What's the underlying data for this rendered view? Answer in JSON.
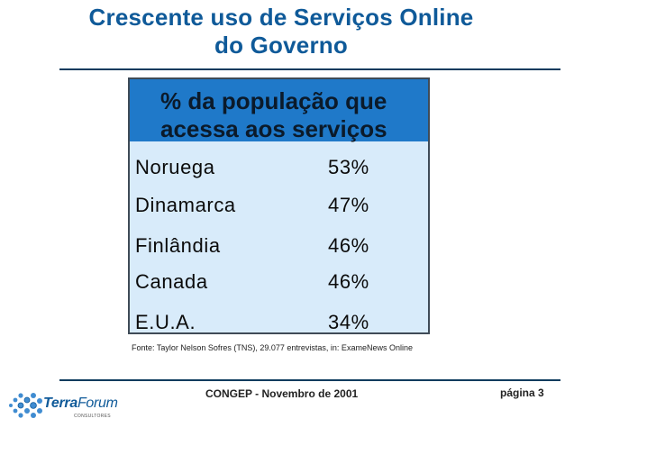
{
  "slide": {
    "title_line1": "Crescente uso de Serviços Online",
    "title_line2": "do Governo"
  },
  "table": {
    "header_line1": "% da população que",
    "header_line2": "acessa aos serviços",
    "rows": [
      {
        "country": "Noruega",
        "percent": "53%"
      },
      {
        "country": "Dinamarca",
        "percent": "47%"
      },
      {
        "country": "Finlândia",
        "percent": "46%"
      },
      {
        "country": "Canada",
        "percent": "46%"
      },
      {
        "country": "E.U.A.",
        "percent": "34%"
      }
    ]
  },
  "source": "Fonte: Taylor Nelson Sofres (TNS), 29.077 entrevistas, in: ExameNews Online",
  "footer": {
    "center": "CONGEP - Novembro de 2001",
    "page": "página 3"
  },
  "logo": {
    "name_bold": "Terra",
    "name_light": "Forum",
    "subtitle": "CONSULTORES"
  },
  "colors": {
    "title": "#0f5a99",
    "header_bg": "#1f79c9",
    "table_bg": "#d8ebfa"
  }
}
